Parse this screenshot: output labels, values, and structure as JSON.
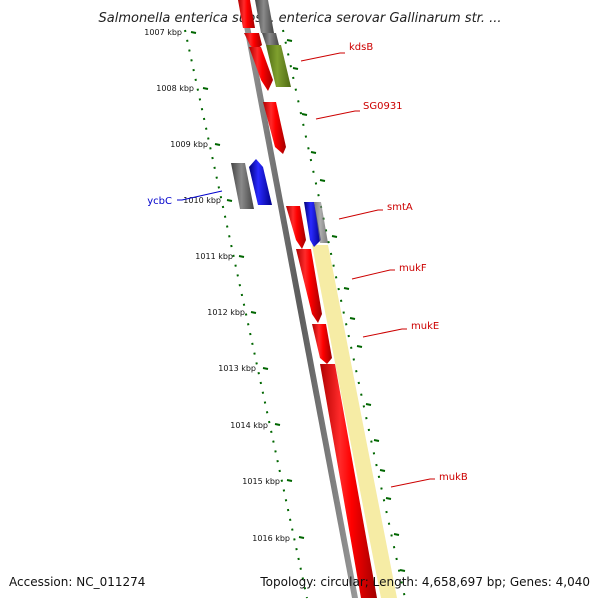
{
  "title": "Salmonella enterica subsp. enterica serovar Gallinarum str. ...",
  "footer": {
    "accession": "Accession: NC_011274",
    "summary": "Topology: circular; Length: 4,658,697 bp; Genes: 4,040"
  },
  "kbp_labels": [
    "1007 kbp",
    "1008 kbp",
    "1009 kbp",
    "1010 kbp",
    "1011 kbp",
    "1012 kbp",
    "1013 kbp",
    "1014 kbp",
    "1015 kbp",
    "1016 kbp"
  ],
  "genes": {
    "kdsB": {
      "label": "kdsB",
      "color": "#cc0000"
    },
    "SG0931": {
      "label": "SG0931",
      "color": "#cc0000"
    },
    "smtA": {
      "label": "smtA",
      "color": "#cc0000"
    },
    "mukF": {
      "label": "mukF",
      "color": "#cc0000"
    },
    "mukE": {
      "label": "mukE",
      "color": "#cc0000"
    },
    "mukB": {
      "label": "mukB",
      "color": "#cc0000"
    },
    "ycbC": {
      "label": "ycbC",
      "color": "#0000cc"
    }
  },
  "colors": {
    "forward_gene": "#ff0000",
    "reverse_gene": "#0000ff",
    "backbone": "#808080",
    "tick": "#006600",
    "highlight_band": "#f5eba0",
    "olive_gene": "#6b8e23"
  }
}
